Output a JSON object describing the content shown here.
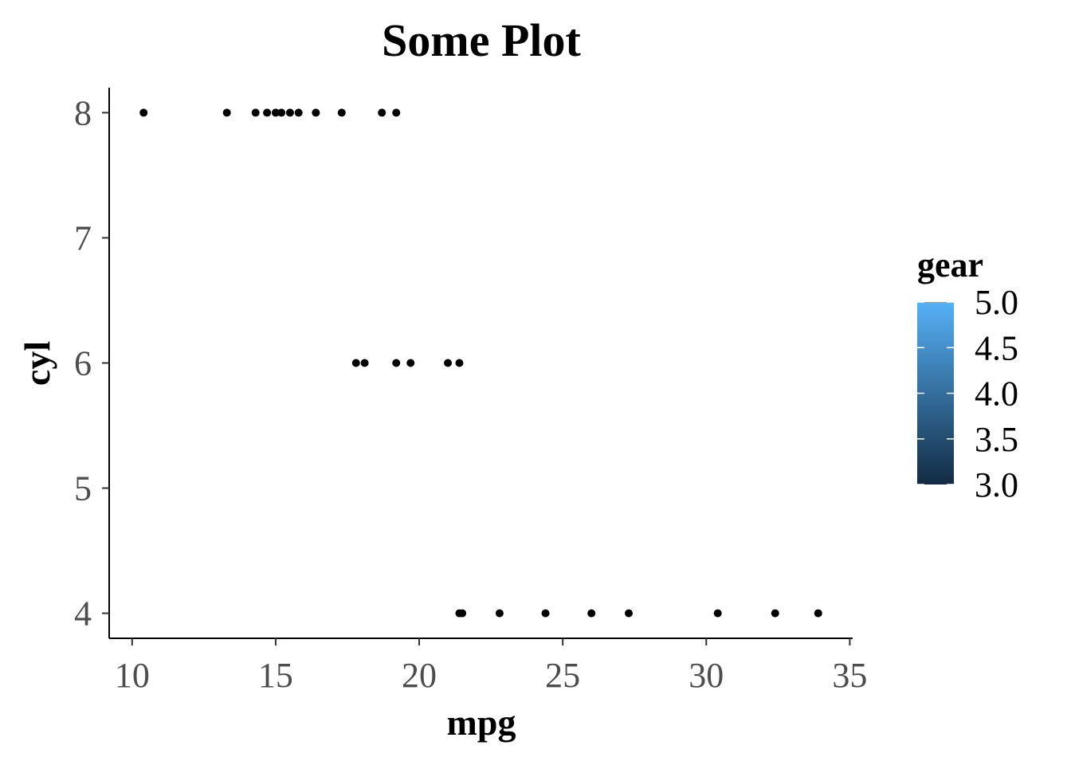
{
  "chart_data": {
    "type": "scatter",
    "title": "Some Plot",
    "xlabel": "mpg",
    "ylabel": "cyl",
    "xlim": [
      9.2,
      35.1
    ],
    "ylim": [
      3.8,
      8.2
    ],
    "x_ticks": [
      10,
      15,
      20,
      25,
      30,
      35
    ],
    "y_ticks": [
      4,
      5,
      6,
      7,
      8
    ],
    "grid": false,
    "legend": {
      "title": "gear",
      "type": "colorbar",
      "position": "right",
      "range": [
        3.0,
        5.0
      ],
      "labels": [
        "5.0",
        "4.5",
        "4.0",
        "3.5",
        "3.0"
      ],
      "color_low": "#132B43",
      "color_high": "#56B1F7"
    },
    "point_color": "#000000",
    "points": [
      {
        "x": 10.4,
        "y": 8
      },
      {
        "x": 13.3,
        "y": 8
      },
      {
        "x": 14.3,
        "y": 8
      },
      {
        "x": 14.7,
        "y": 8
      },
      {
        "x": 15.0,
        "y": 8
      },
      {
        "x": 15.2,
        "y": 8
      },
      {
        "x": 15.5,
        "y": 8
      },
      {
        "x": 15.8,
        "y": 8
      },
      {
        "x": 16.4,
        "y": 8
      },
      {
        "x": 17.3,
        "y": 8
      },
      {
        "x": 18.7,
        "y": 8
      },
      {
        "x": 19.2,
        "y": 8
      },
      {
        "x": 17.8,
        "y": 6
      },
      {
        "x": 18.1,
        "y": 6
      },
      {
        "x": 19.2,
        "y": 6
      },
      {
        "x": 19.7,
        "y": 6
      },
      {
        "x": 21.0,
        "y": 6
      },
      {
        "x": 21.4,
        "y": 6
      },
      {
        "x": 21.4,
        "y": 4
      },
      {
        "x": 21.5,
        "y": 4
      },
      {
        "x": 22.8,
        "y": 4
      },
      {
        "x": 24.4,
        "y": 4
      },
      {
        "x": 26.0,
        "y": 4
      },
      {
        "x": 27.3,
        "y": 4
      },
      {
        "x": 30.4,
        "y": 4
      },
      {
        "x": 32.4,
        "y": 4
      },
      {
        "x": 33.9,
        "y": 4
      }
    ]
  }
}
